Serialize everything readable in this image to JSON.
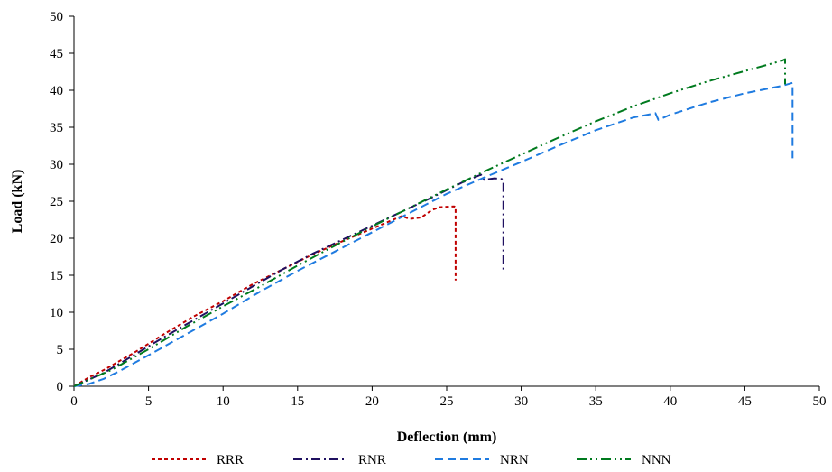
{
  "chart_data": {
    "type": "line",
    "title": "",
    "xlabel": "Deflection (mm)",
    "ylabel": "Load (kN)",
    "xlim": [
      0,
      50
    ],
    "ylim": [
      0,
      50
    ],
    "xticks": [
      "0",
      "5",
      "10",
      "15",
      "20",
      "25",
      "30",
      "35",
      "40",
      "45",
      "50"
    ],
    "yticks": [
      "0",
      "5",
      "10",
      "15",
      "20",
      "25",
      "30",
      "35",
      "40",
      "45",
      "50"
    ],
    "grid": false,
    "legend_position": "bottom",
    "series": [
      {
        "name": "RRR",
        "color": "#c00000",
        "dash": "short-dash",
        "x": [
          0,
          1,
          2,
          4,
          6,
          8,
          10,
          12,
          14,
          16,
          18,
          20,
          22,
          22.5,
          23.3,
          24,
          24.5,
          25.5,
          25.6,
          25.6
        ],
        "y": [
          0,
          1.2,
          2.2,
          4.5,
          7,
          9.4,
          11.5,
          13.8,
          15.8,
          17.8,
          19.6,
          21.3,
          23,
          22.6,
          22.8,
          23.8,
          24.2,
          24.3,
          24.2,
          14.3
        ]
      },
      {
        "name": "RNR",
        "color": "#1f1060",
        "dash": "dash-dot",
        "x": [
          0,
          2,
          4,
          6,
          8,
          10,
          12,
          14,
          16,
          18,
          20,
          22,
          24,
          26,
          27.3,
          27.5,
          28.2,
          28.7,
          28.8,
          28.8
        ],
        "y": [
          0,
          1.8,
          4.2,
          6.6,
          8.9,
          11.2,
          13.5,
          15.8,
          17.9,
          19.8,
          21.7,
          23.6,
          25.5,
          27.5,
          28.6,
          27.9,
          28.1,
          28,
          27.6,
          15.7
        ]
      },
      {
        "name": "NRN",
        "color": "#1f7be0",
        "dash": "long-dash",
        "x": [
          0,
          1,
          2,
          3,
          5,
          7.5,
          10,
          12.5,
          15,
          17.5,
          20,
          22.5,
          25,
          27.5,
          30,
          32.5,
          35,
          37.5,
          39,
          39.2,
          40,
          42.5,
          45,
          47.5,
          48.2,
          48.2
        ],
        "y": [
          0,
          0.3,
          1,
          2,
          4.2,
          7,
          9.8,
          12.8,
          15.6,
          18.2,
          20.8,
          23.4,
          26,
          28.2,
          30.3,
          32.5,
          34.6,
          36.3,
          36.9,
          36,
          36.7,
          38.3,
          39.6,
          40.6,
          41,
          30.8
        ]
      },
      {
        "name": "NNN",
        "color": "#007a1e",
        "dash": "dash-dot-dot",
        "x": [
          0,
          2.5,
          5,
          7.5,
          10,
          12.5,
          15,
          17.5,
          20,
          22.5,
          25,
          27.5,
          30,
          32.5,
          35,
          37.5,
          40,
          42.5,
          45,
          47.5,
          47.7,
          47.7
        ],
        "y": [
          0,
          2.2,
          5,
          8,
          10.8,
          13.5,
          16.3,
          19,
          21.6,
          24.1,
          26.6,
          29,
          31.3,
          33.6,
          35.8,
          37.8,
          39.6,
          41.2,
          42.6,
          44,
          44.2,
          40.8
        ]
      }
    ]
  }
}
